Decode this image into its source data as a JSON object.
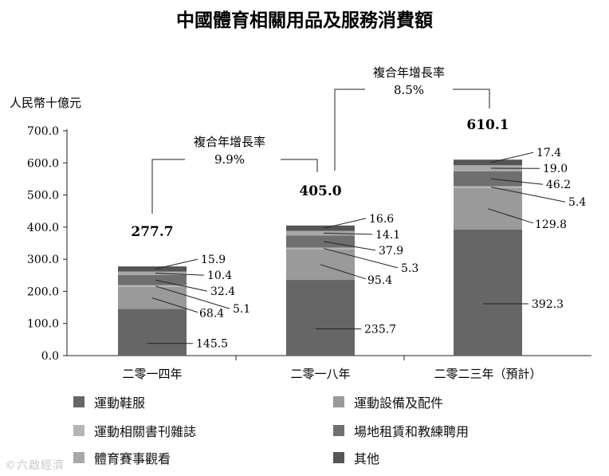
{
  "chart_data": {
    "type": "bar",
    "stacked": true,
    "title": "中國體育相關用品及服務消費額",
    "ylabel": "人民幣十億元",
    "ylim": [
      0,
      700
    ],
    "yticks": [
      "0.0",
      "100.0",
      "200.0",
      "300.0",
      "400.0",
      "500.0",
      "600.0",
      "700.0"
    ],
    "grid": false,
    "legend_position": "bottom",
    "categories": [
      "二零一四年",
      "二零一八年",
      "二零二三年（預計）"
    ],
    "totals": [
      "277.7",
      "405.0",
      "610.1"
    ],
    "series": [
      {
        "name": "運動鞋服",
        "values": [
          145.5,
          235.7,
          392.3
        ],
        "labels": [
          "145.5",
          "235.7",
          "392.3"
        ],
        "color": "#666666"
      },
      {
        "name": "運動設備及配件",
        "values": [
          68.4,
          95.4,
          129.8
        ],
        "labels": [
          "68.4",
          "95.4",
          "129.8"
        ],
        "color": "#9a9a9a"
      },
      {
        "name": "運動相關書刊雜誌",
        "values": [
          5.1,
          5.3,
          5.4
        ],
        "labels": [
          "5.1",
          "5.3",
          "5.4"
        ],
        "color": "#b5b5b5"
      },
      {
        "name": "場地租賃和教練聘用",
        "values": [
          32.4,
          37.9,
          46.2
        ],
        "labels": [
          "32.4",
          "37.9",
          "46.2"
        ],
        "color": "#6f6f6f"
      },
      {
        "name": "體育賽事觀看",
        "values": [
          10.4,
          14.1,
          19.0
        ],
        "labels": [
          "10.4",
          "14.1",
          "19.0"
        ],
        "color": "#a8a8a8"
      },
      {
        "name": "其他",
        "values": [
          15.9,
          16.6,
          17.4
        ],
        "labels": [
          "15.9",
          "16.6",
          "17.4"
        ],
        "color": "#555555"
      }
    ],
    "annotations": [
      {
        "from": 0,
        "to": 1,
        "label": "複合年增長率",
        "rate": "9.9%"
      },
      {
        "from": 1,
        "to": 2,
        "label": "複合年增長率",
        "rate": "8.5%"
      }
    ]
  },
  "watermark": "©六啟經濟"
}
